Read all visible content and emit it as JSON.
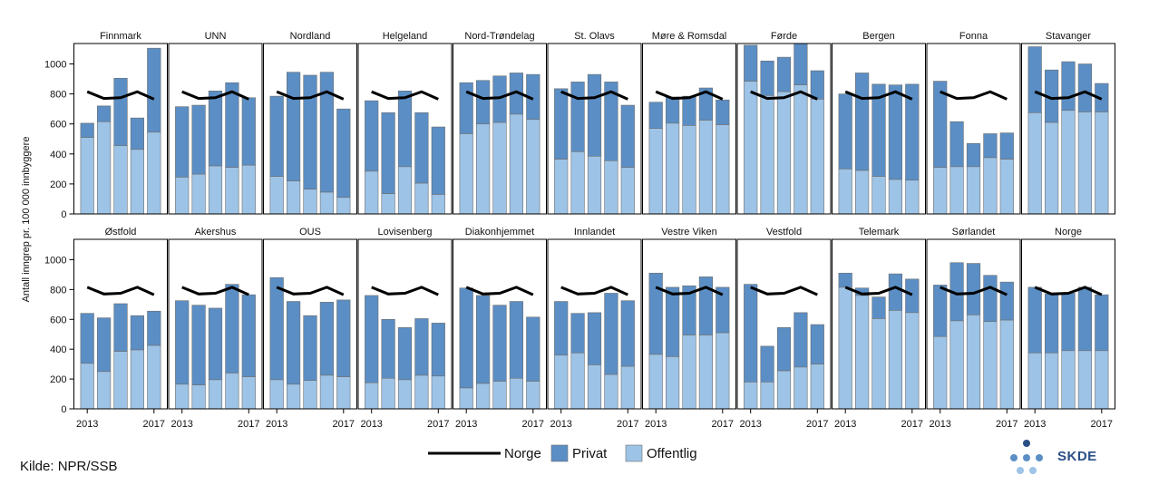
{
  "chart_data": {
    "type": "bar",
    "layout": "small-multiples, stacked bars with line overlay",
    "ylabel": "Antall inngrep pr. 100 000 innbyggere",
    "ylim": [
      0,
      1100
    ],
    "yticks": [
      0,
      200,
      400,
      600,
      800,
      1000
    ],
    "years": [
      2013,
      2014,
      2015,
      2016,
      2017
    ],
    "xtick_labels": [
      "2013",
      "2017"
    ],
    "norge_line": [
      815,
      770,
      775,
      815,
      765
    ],
    "legend": [
      "Norge",
      "Privat",
      "Offentlig"
    ],
    "colors": {
      "privat": "#5b8ec4",
      "offentlig": "#9dc3e6",
      "line": "#000000",
      "bar_edge": "#6e6e6e"
    },
    "panels": [
      {
        "name": "Finnmark",
        "total": [
          605,
          720,
          905,
          640,
          1105
        ],
        "offentlig": [
          510,
          615,
          455,
          430,
          545
        ]
      },
      {
        "name": "UNN",
        "total": [
          715,
          725,
          820,
          875,
          775
        ],
        "offentlig": [
          245,
          265,
          320,
          310,
          325
        ]
      },
      {
        "name": "Nordland",
        "total": [
          785,
          945,
          925,
          945,
          700
        ],
        "offentlig": [
          250,
          220,
          165,
          145,
          110
        ]
      },
      {
        "name": "Helgeland",
        "total": [
          755,
          675,
          820,
          675,
          580
        ],
        "offentlig": [
          285,
          135,
          315,
          205,
          130
        ]
      },
      {
        "name": "Nord-Trøndelag",
        "total": [
          875,
          890,
          920,
          940,
          930
        ],
        "offentlig": [
          535,
          600,
          610,
          665,
          630
        ]
      },
      {
        "name": "St. Olavs",
        "total": [
          835,
          880,
          930,
          880,
          725
        ],
        "offentlig": [
          365,
          415,
          385,
          355,
          310
        ]
      },
      {
        "name": "Møre & Romsdal",
        "total": [
          745,
          780,
          785,
          840,
          760
        ],
        "offentlig": [
          570,
          605,
          590,
          625,
          595
        ]
      },
      {
        "name": "Førde",
        "total": [
          1125,
          1020,
          1045,
          1135,
          955
        ],
        "offentlig": [
          885,
          790,
          815,
          860,
          765
        ]
      },
      {
        "name": "Bergen",
        "total": [
          800,
          940,
          865,
          860,
          865
        ],
        "offentlig": [
          300,
          290,
          250,
          230,
          225
        ]
      },
      {
        "name": "Fonna",
        "total": [
          885,
          615,
          470,
          535,
          540
        ],
        "offentlig": [
          310,
          315,
          315,
          375,
          365
        ]
      },
      {
        "name": "Stavanger",
        "total": [
          1115,
          960,
          1015,
          1000,
          870
        ],
        "offentlig": [
          675,
          610,
          690,
          680,
          680
        ]
      },
      {
        "name": "Østfold",
        "total": [
          640,
          610,
          705,
          625,
          655
        ],
        "offentlig": [
          305,
          250,
          385,
          395,
          425
        ]
      },
      {
        "name": "Akershus",
        "total": [
          725,
          695,
          675,
          835,
          765
        ],
        "offentlig": [
          165,
          160,
          195,
          240,
          215
        ]
      },
      {
        "name": "OUS",
        "total": [
          880,
          720,
          625,
          715,
          730
        ],
        "offentlig": [
          195,
          165,
          190,
          225,
          215
        ]
      },
      {
        "name": "Lovisenberg",
        "total": [
          760,
          600,
          545,
          605,
          575
        ],
        "offentlig": [
          175,
          205,
          195,
          225,
          220
        ]
      },
      {
        "name": "Diakonhjemmet",
        "total": [
          810,
          760,
          695,
          720,
          615
        ],
        "offentlig": [
          140,
          170,
          185,
          205,
          185
        ]
      },
      {
        "name": "Innlandet",
        "total": [
          720,
          640,
          645,
          775,
          725
        ],
        "offentlig": [
          360,
          375,
          295,
          230,
          285
        ]
      },
      {
        "name": "Vestre Viken",
        "total": [
          910,
          815,
          825,
          885,
          815
        ],
        "offentlig": [
          365,
          350,
          495,
          495,
          510
        ]
      },
      {
        "name": "Vestfold",
        "total": [
          835,
          420,
          545,
          645,
          565
        ],
        "offentlig": [
          180,
          180,
          255,
          280,
          300
        ]
      },
      {
        "name": "Telemark",
        "total": [
          910,
          810,
          750,
          905,
          870
        ],
        "offentlig": [
          815,
          760,
          605,
          660,
          645
        ]
      },
      {
        "name": "Sørlandet",
        "total": [
          830,
          980,
          975,
          895,
          850
        ],
        "offentlig": [
          485,
          590,
          630,
          585,
          595
        ]
      },
      {
        "name": "Norge",
        "total": [
          815,
          770,
          775,
          815,
          765
        ],
        "offentlig": [
          375,
          375,
          390,
          390,
          390
        ]
      }
    ]
  },
  "source": "Kilde: NPR/SSB",
  "logo_text": "SKDE"
}
